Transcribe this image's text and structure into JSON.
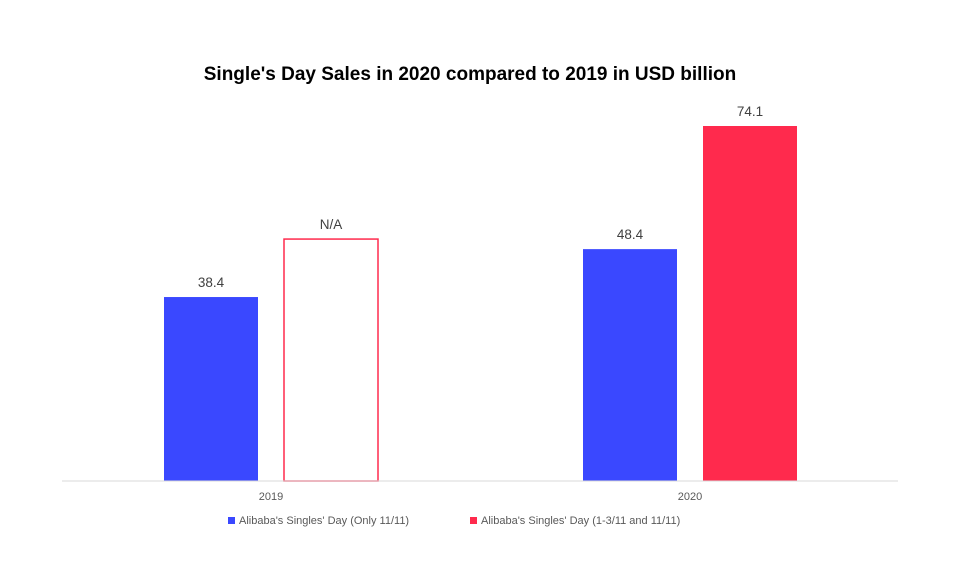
{
  "chart_data": {
    "type": "bar",
    "title": "Single's Day Sales in 2020 compared to 2019 in USD billion",
    "xlabel": "",
    "ylabel": "",
    "categories": [
      "2019",
      "2020"
    ],
    "ylim": [
      0,
      80
    ],
    "grid": false,
    "legend_position": "bottom",
    "series": [
      {
        "name": "Alibaba's Singles' Day (Only 11/11)",
        "color": "#3a48ff",
        "values": [
          38.4,
          48.4
        ],
        "labels": [
          "38.4",
          "48.4"
        ]
      },
      {
        "name": "Alibaba's Singles' Day (1-3/11 and 11/11)",
        "color": "#ff2a4d",
        "values": [
          null,
          74.1
        ],
        "labels": [
          "N/A",
          "74.1"
        ],
        "na_value": 50.5
      }
    ]
  }
}
